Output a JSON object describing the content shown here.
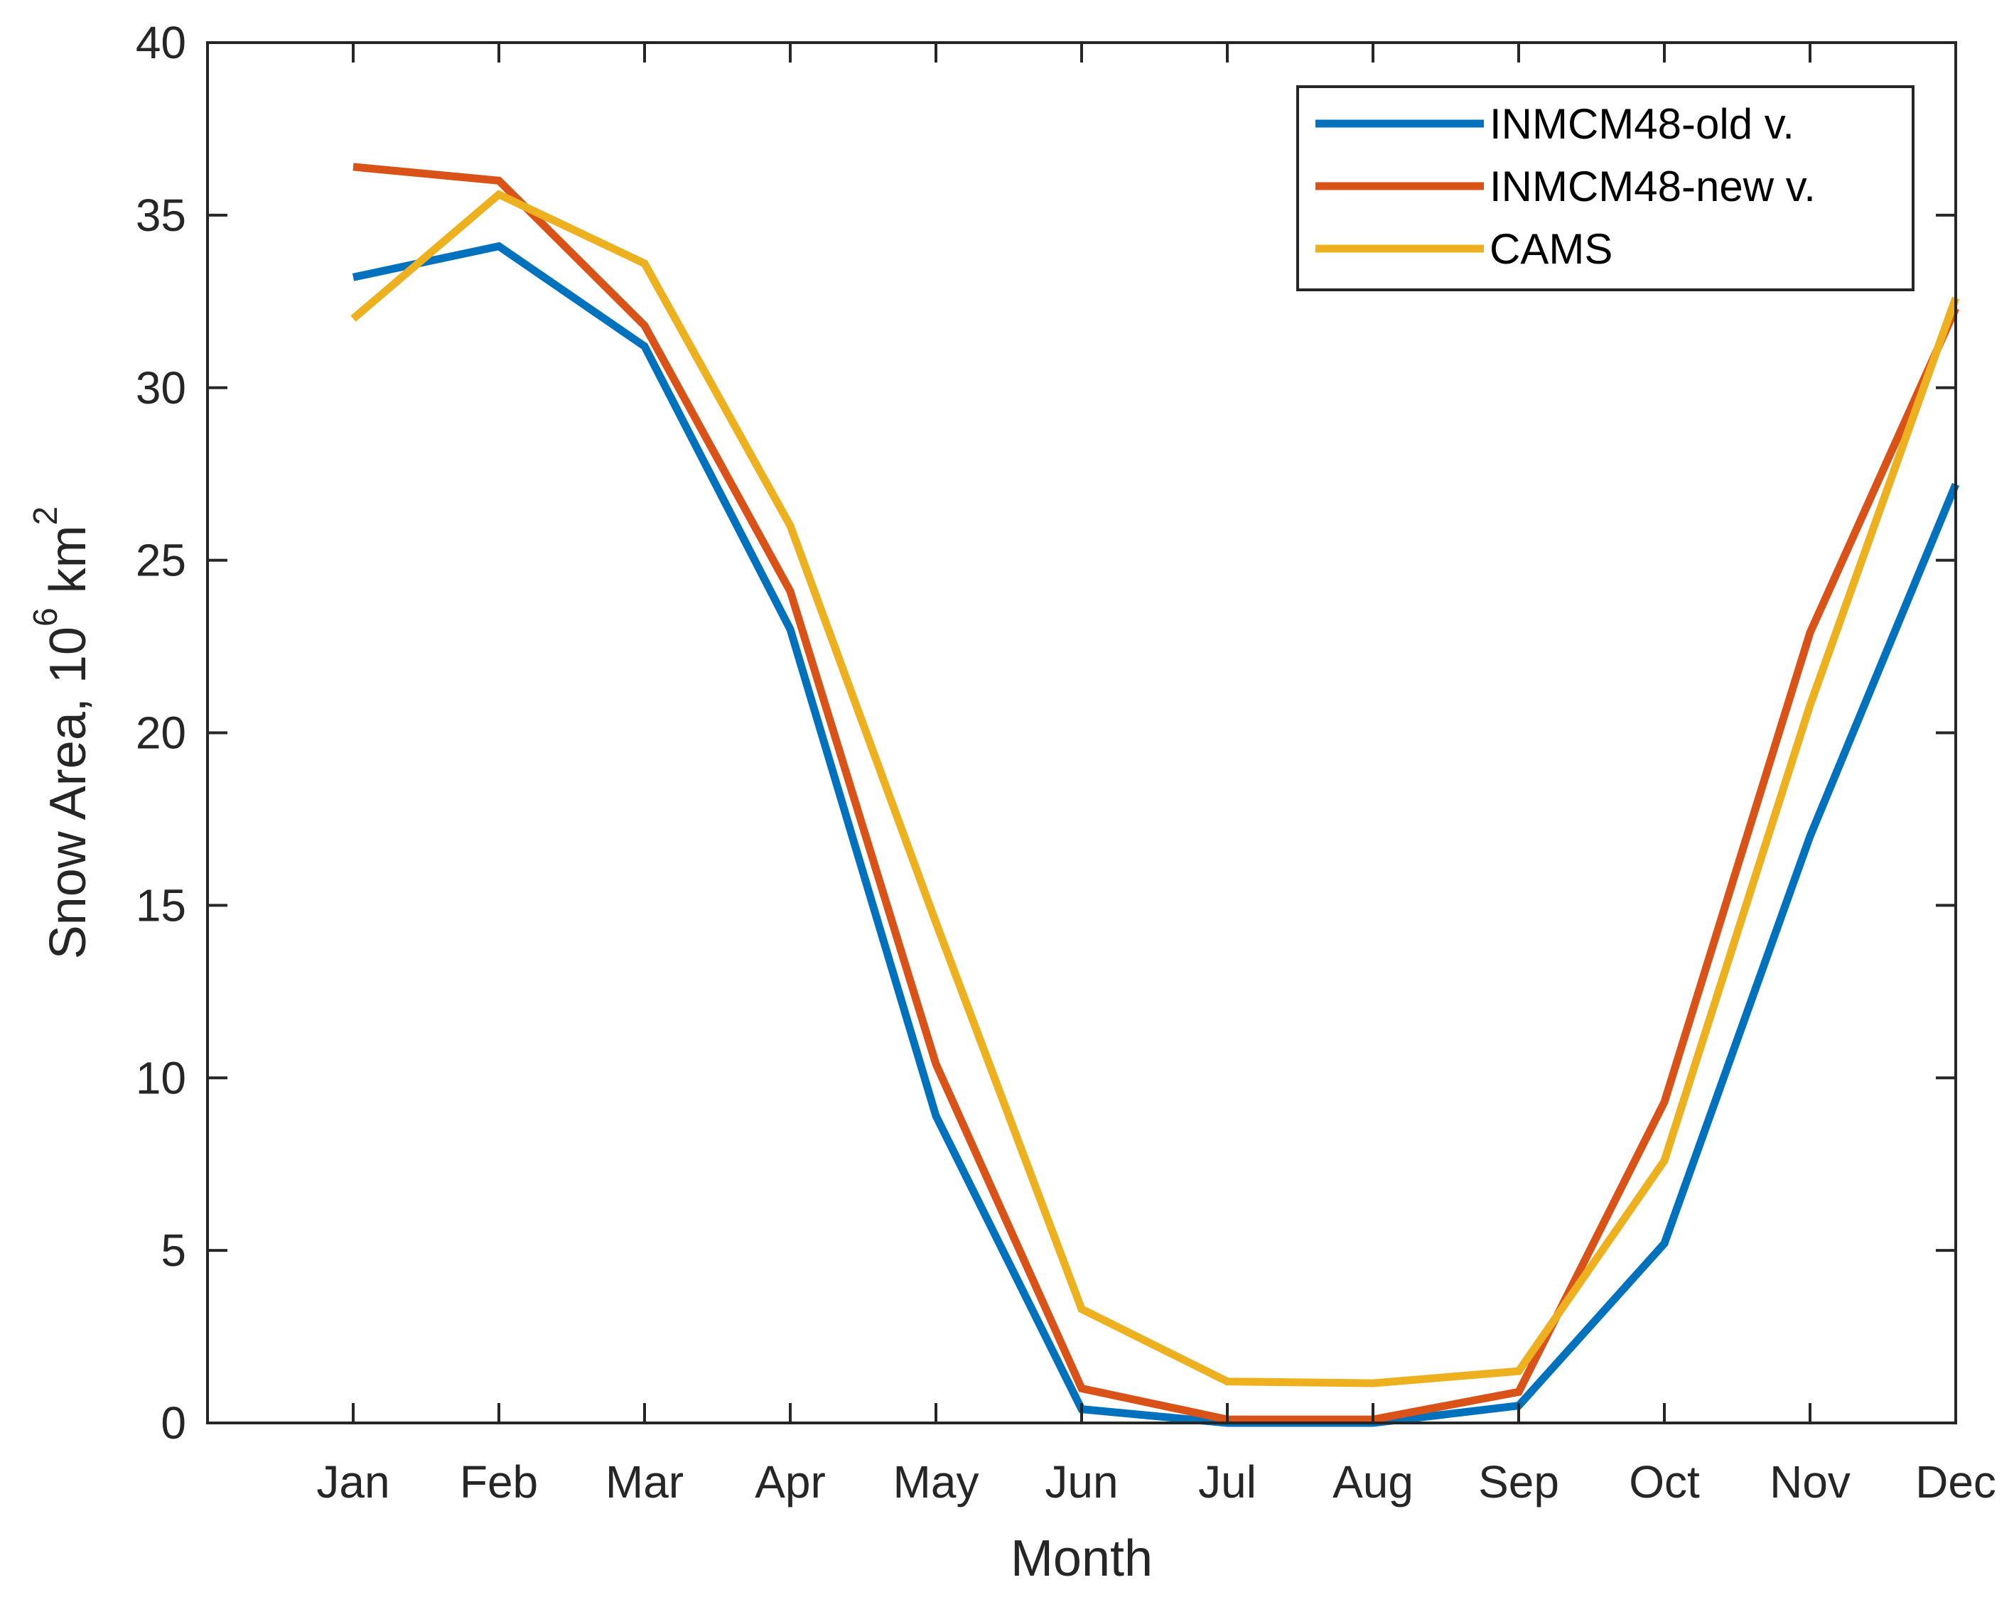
{
  "chart_data": {
    "type": "line",
    "title": "",
    "xlabel": "Month",
    "ylabel": {
      "prefix": "Snow Area, 10",
      "exponent": "6",
      "unit": " km",
      "unit_exponent": "2"
    },
    "categories": [
      "Jan",
      "Feb",
      "Mar",
      "Apr",
      "May",
      "Jun",
      "Jul",
      "Aug",
      "Sep",
      "Oct",
      "Nov",
      "Dec"
    ],
    "x_range": [
      0,
      12
    ],
    "ylim": [
      0,
      40
    ],
    "yticks": [
      0,
      5,
      10,
      15,
      20,
      25,
      30,
      35,
      40
    ],
    "legend_position": "top-right",
    "series": [
      {
        "name": "INMCM48-old v.",
        "color": "#0072BD",
        "values": [
          33.2,
          34.1,
          31.2,
          23.0,
          8.9,
          0.4,
          0.0,
          0.0,
          0.5,
          5.2,
          17.0,
          27.2
        ]
      },
      {
        "name": "INMCM48-new v.",
        "color": "#D95319",
        "values": [
          36.4,
          36.0,
          31.8,
          24.1,
          10.4,
          1.0,
          0.1,
          0.1,
          0.9,
          9.3,
          22.9,
          32.3
        ]
      },
      {
        "name": "CAMS",
        "color": "#EDB120",
        "values": [
          32.0,
          35.6,
          33.6,
          26.0,
          14.5,
          3.3,
          1.2,
          1.15,
          1.5,
          7.6,
          20.8,
          32.6
        ]
      }
    ]
  }
}
